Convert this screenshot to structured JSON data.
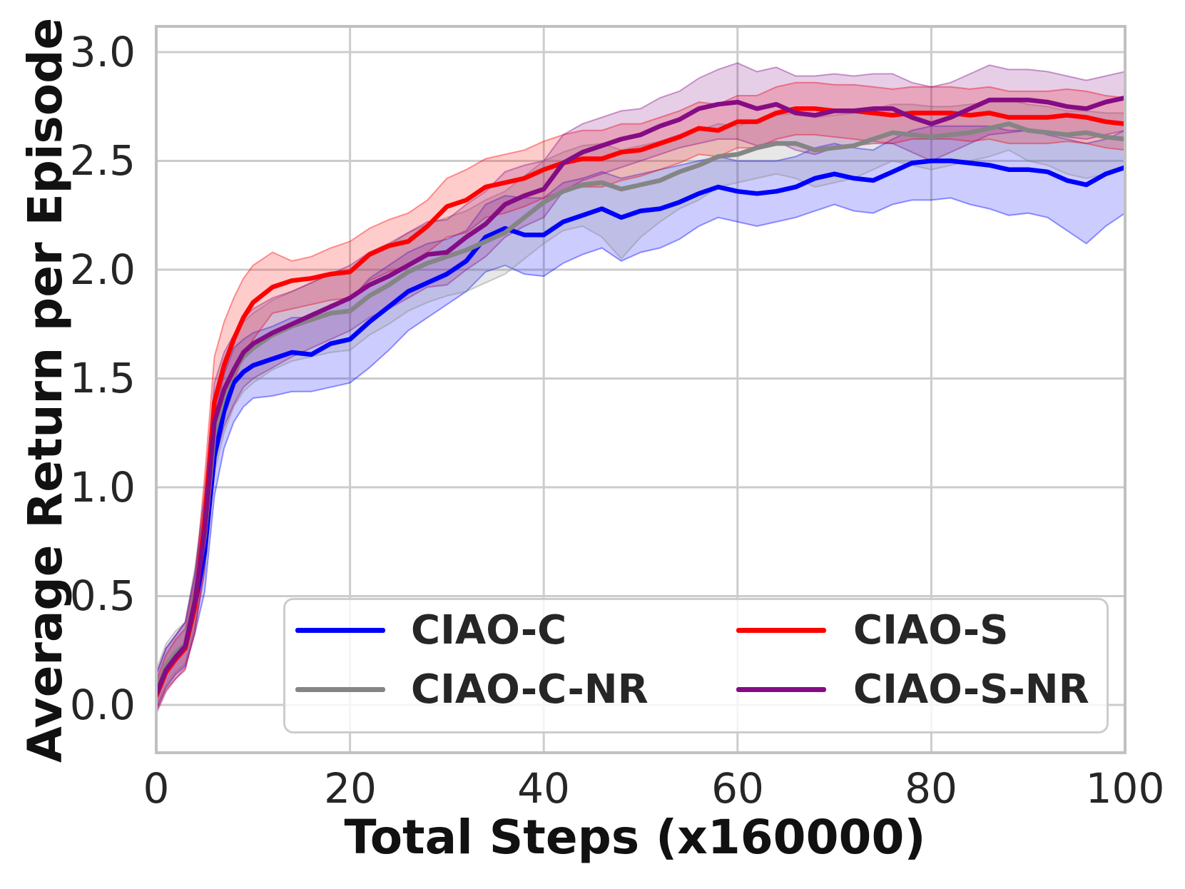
{
  "chart_data": {
    "type": "line",
    "title": "",
    "xlabel": "Total Steps (x160000)",
    "ylabel": "Average Return per Episode",
    "xlim": [
      0,
      100
    ],
    "ylim": [
      -0.22,
      3.12
    ],
    "grid": true,
    "legend_position": "lower center",
    "xticks": [
      "0",
      "20",
      "40",
      "60",
      "80",
      "100"
    ],
    "yticks": [
      "0.0",
      "0.5",
      "1.0",
      "1.5",
      "2.0",
      "2.5",
      "3.0"
    ],
    "xtick_values": [
      0,
      20,
      40,
      60,
      80,
      100
    ],
    "ytick_values": [
      0.0,
      0.5,
      1.0,
      1.5,
      2.0,
      2.5,
      3.0
    ],
    "band_opacity": 0.2,
    "x": [
      0,
      1,
      2,
      3,
      4,
      5,
      6,
      7,
      8,
      9,
      10,
      12,
      14,
      16,
      18,
      20,
      22,
      24,
      26,
      28,
      30,
      32,
      34,
      36,
      38,
      40,
      42,
      44,
      46,
      48,
      50,
      52,
      54,
      56,
      58,
      60,
      62,
      64,
      66,
      68,
      70,
      72,
      74,
      76,
      78,
      80,
      82,
      84,
      86,
      88,
      90,
      92,
      94,
      96,
      98,
      100
    ],
    "series": [
      {
        "name": "CIAO-C",
        "color": "#0000ff",
        "mean": [
          0.06,
          0.17,
          0.23,
          0.27,
          0.46,
          0.7,
          1.14,
          1.35,
          1.48,
          1.53,
          1.56,
          1.59,
          1.62,
          1.61,
          1.66,
          1.68,
          1.76,
          1.83,
          1.9,
          1.94,
          1.98,
          2.04,
          2.15,
          2.19,
          2.16,
          2.16,
          2.22,
          2.25,
          2.28,
          2.24,
          2.27,
          2.28,
          2.31,
          2.35,
          2.38,
          2.36,
          2.35,
          2.36,
          2.38,
          2.42,
          2.44,
          2.42,
          2.41,
          2.45,
          2.49,
          2.5,
          2.5,
          2.49,
          2.48,
          2.46,
          2.46,
          2.45,
          2.41,
          2.39,
          2.44,
          2.47
        ],
        "lower": [
          -0.02,
          0.08,
          0.14,
          0.18,
          0.33,
          0.52,
          0.96,
          1.18,
          1.3,
          1.37,
          1.41,
          1.42,
          1.44,
          1.44,
          1.46,
          1.48,
          1.55,
          1.63,
          1.72,
          1.78,
          1.84,
          1.9,
          1.99,
          2.02,
          1.98,
          1.97,
          2.03,
          2.07,
          2.1,
          2.04,
          2.08,
          2.1,
          2.14,
          2.2,
          2.24,
          2.22,
          2.2,
          2.22,
          2.24,
          2.27,
          2.3,
          2.27,
          2.26,
          2.3,
          2.32,
          2.32,
          2.33,
          2.3,
          2.28,
          2.25,
          2.26,
          2.24,
          2.18,
          2.12,
          2.2,
          2.26
        ],
        "upper": [
          0.14,
          0.26,
          0.32,
          0.38,
          0.6,
          0.9,
          1.32,
          1.52,
          1.64,
          1.68,
          1.71,
          1.74,
          1.78,
          1.78,
          1.84,
          1.86,
          1.96,
          2.02,
          2.08,
          2.12,
          2.14,
          2.18,
          2.3,
          2.34,
          2.33,
          2.33,
          2.4,
          2.42,
          2.45,
          2.42,
          2.44,
          2.46,
          2.48,
          2.5,
          2.52,
          2.5,
          2.5,
          2.5,
          2.52,
          2.56,
          2.58,
          2.56,
          2.55,
          2.6,
          2.64,
          2.66,
          2.66,
          2.66,
          2.66,
          2.64,
          2.64,
          2.62,
          2.6,
          2.58,
          2.6,
          2.64
        ]
      },
      {
        "name": "CIAO-C-NR",
        "color": "#858585",
        "mean": [
          0.07,
          0.18,
          0.24,
          0.28,
          0.5,
          0.78,
          1.25,
          1.42,
          1.53,
          1.6,
          1.64,
          1.7,
          1.74,
          1.77,
          1.8,
          1.81,
          1.88,
          1.93,
          1.99,
          2.03,
          2.06,
          2.09,
          2.13,
          2.17,
          2.24,
          2.31,
          2.36,
          2.39,
          2.4,
          2.37,
          2.39,
          2.41,
          2.45,
          2.48,
          2.52,
          2.53,
          2.56,
          2.58,
          2.58,
          2.55,
          2.56,
          2.57,
          2.6,
          2.63,
          2.62,
          2.61,
          2.62,
          2.63,
          2.65,
          2.67,
          2.64,
          2.63,
          2.62,
          2.63,
          2.61,
          2.6
        ],
        "lower": [
          -0.01,
          0.09,
          0.15,
          0.19,
          0.37,
          0.6,
          1.07,
          1.25,
          1.37,
          1.44,
          1.48,
          1.54,
          1.58,
          1.6,
          1.62,
          1.63,
          1.7,
          1.75,
          1.81,
          1.85,
          1.88,
          1.9,
          1.94,
          1.98,
          2.05,
          2.12,
          2.18,
          2.2,
          2.15,
          2.05,
          2.15,
          2.22,
          2.28,
          2.32,
          2.38,
          2.4,
          2.42,
          2.44,
          2.42,
          2.38,
          2.4,
          2.42,
          2.46,
          2.5,
          2.48,
          2.46,
          2.48,
          2.5,
          2.52,
          2.55,
          2.5,
          2.48,
          2.44,
          2.42,
          2.44,
          2.46
        ],
        "upper": [
          0.16,
          0.28,
          0.34,
          0.38,
          0.63,
          0.95,
          1.43,
          1.59,
          1.69,
          1.76,
          1.8,
          1.86,
          1.9,
          1.94,
          1.98,
          2.0,
          2.06,
          2.11,
          2.17,
          2.21,
          2.24,
          2.27,
          2.32,
          2.36,
          2.43,
          2.5,
          2.54,
          2.57,
          2.58,
          2.55,
          2.57,
          2.59,
          2.62,
          2.64,
          2.67,
          2.66,
          2.69,
          2.71,
          2.72,
          2.7,
          2.71,
          2.72,
          2.74,
          2.76,
          2.76,
          2.75,
          2.75,
          2.76,
          2.77,
          2.78,
          2.76,
          2.75,
          2.73,
          2.73,
          2.72,
          2.72
        ]
      },
      {
        "name": "CIAO-S",
        "color": "#ff0000",
        "mean": [
          0.04,
          0.15,
          0.21,
          0.26,
          0.45,
          0.85,
          1.39,
          1.56,
          1.68,
          1.78,
          1.85,
          1.92,
          1.95,
          1.96,
          1.98,
          1.99,
          2.07,
          2.11,
          2.13,
          2.2,
          2.29,
          2.32,
          2.38,
          2.4,
          2.42,
          2.46,
          2.49,
          2.51,
          2.51,
          2.54,
          2.55,
          2.58,
          2.61,
          2.65,
          2.64,
          2.68,
          2.68,
          2.72,
          2.74,
          2.74,
          2.73,
          2.73,
          2.72,
          2.71,
          2.72,
          2.72,
          2.72,
          2.71,
          2.72,
          2.7,
          2.7,
          2.7,
          2.71,
          2.7,
          2.68,
          2.67
        ],
        "lower": [
          -0.03,
          0.07,
          0.12,
          0.17,
          0.33,
          0.65,
          1.18,
          1.36,
          1.49,
          1.6,
          1.68,
          1.8,
          1.82,
          1.84,
          1.86,
          1.87,
          1.95,
          1.99,
          2.02,
          2.08,
          2.15,
          2.17,
          2.24,
          2.26,
          2.29,
          2.33,
          2.36,
          2.38,
          2.38,
          2.41,
          2.43,
          2.46,
          2.49,
          2.53,
          2.52,
          2.56,
          2.56,
          2.6,
          2.62,
          2.62,
          2.61,
          2.6,
          2.59,
          2.58,
          2.6,
          2.6,
          2.6,
          2.59,
          2.6,
          2.58,
          2.58,
          2.58,
          2.59,
          2.58,
          2.56,
          2.55
        ],
        "upper": [
          0.11,
          0.23,
          0.3,
          0.35,
          0.57,
          1.05,
          1.6,
          1.76,
          1.87,
          1.96,
          2.02,
          2.08,
          2.04,
          2.06,
          2.1,
          2.13,
          2.19,
          2.23,
          2.26,
          2.32,
          2.42,
          2.46,
          2.51,
          2.53,
          2.55,
          2.59,
          2.62,
          2.64,
          2.64,
          2.67,
          2.67,
          2.7,
          2.73,
          2.77,
          2.76,
          2.8,
          2.8,
          2.84,
          2.86,
          2.86,
          2.85,
          2.85,
          2.84,
          2.83,
          2.84,
          2.84,
          2.84,
          2.83,
          2.84,
          2.82,
          2.82,
          2.82,
          2.83,
          2.82,
          2.8,
          2.79
        ]
      },
      {
        "name": "CIAO-S-NR",
        "color": "#850c85",
        "mean": [
          0.05,
          0.16,
          0.22,
          0.27,
          0.48,
          0.8,
          1.3,
          1.45,
          1.54,
          1.62,
          1.66,
          1.71,
          1.75,
          1.79,
          1.83,
          1.87,
          1.93,
          1.97,
          2.02,
          2.07,
          2.08,
          2.15,
          2.21,
          2.3,
          2.34,
          2.37,
          2.49,
          2.54,
          2.57,
          2.6,
          2.62,
          2.66,
          2.69,
          2.74,
          2.76,
          2.77,
          2.74,
          2.76,
          2.72,
          2.71,
          2.73,
          2.73,
          2.74,
          2.74,
          2.7,
          2.67,
          2.7,
          2.74,
          2.78,
          2.78,
          2.78,
          2.77,
          2.75,
          2.74,
          2.77,
          2.79
        ],
        "lower": [
          -0.04,
          0.06,
          0.12,
          0.16,
          0.35,
          0.62,
          1.12,
          1.28,
          1.38,
          1.46,
          1.5,
          1.55,
          1.6,
          1.64,
          1.68,
          1.72,
          1.78,
          1.82,
          1.87,
          1.92,
          1.93,
          2.0,
          2.06,
          2.15,
          2.2,
          2.24,
          2.36,
          2.41,
          2.44,
          2.47,
          2.5,
          2.53,
          2.56,
          2.58,
          2.6,
          2.6,
          2.57,
          2.59,
          2.55,
          2.53,
          2.56,
          2.57,
          2.58,
          2.58,
          2.54,
          2.5,
          2.54,
          2.58,
          2.62,
          2.63,
          2.64,
          2.63,
          2.61,
          2.6,
          2.62,
          2.64
        ],
        "upper": [
          0.14,
          0.26,
          0.32,
          0.38,
          0.61,
          0.98,
          1.48,
          1.62,
          1.7,
          1.78,
          1.82,
          1.87,
          1.9,
          1.94,
          1.98,
          2.02,
          2.08,
          2.12,
          2.17,
          2.22,
          2.23,
          2.3,
          2.36,
          2.45,
          2.48,
          2.5,
          2.62,
          2.67,
          2.7,
          2.73,
          2.74,
          2.79,
          2.82,
          2.88,
          2.92,
          2.95,
          2.91,
          2.93,
          2.89,
          2.89,
          2.9,
          2.89,
          2.9,
          2.9,
          2.86,
          2.84,
          2.86,
          2.9,
          2.94,
          2.92,
          2.92,
          2.91,
          2.89,
          2.87,
          2.89,
          2.91
        ]
      }
    ],
    "legend_entries": [
      "CIAO-C",
      "CIAO-C-NR",
      "CIAO-S",
      "CIAO-S-NR"
    ]
  },
  "colors": {
    "grid": "#cccccc",
    "spine": "#c0c0c0",
    "tick_text": "#262626",
    "label_text": "#111111",
    "legend_border": "#cccccc"
  }
}
